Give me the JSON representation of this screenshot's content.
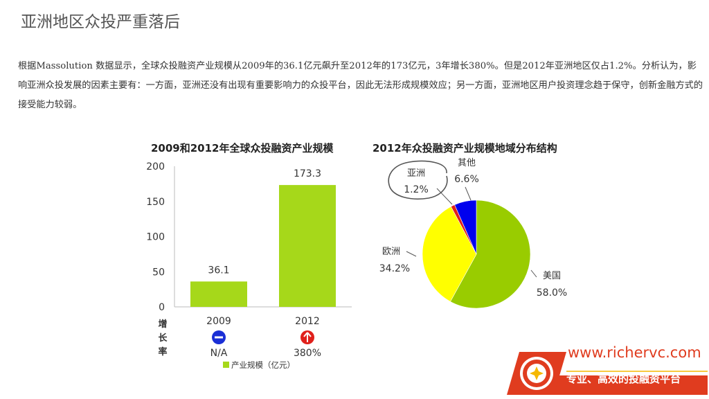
{
  "slide": {
    "title": "亚洲地区众投严重落后",
    "intro": "根据Massolution 数据显示，全球众投融资产业规模从2009年的36.1亿元飙升至2012年的173亿元，3年增长380%。但是2012年亚洲地区仅占1.2%。分析认为，影响亚洲众投发展的因素主要有：一方面，亚洲还没有出现有重要影响力的众投平台，因此无法形成规模效应；另一方面，亚洲地区用户投资理念趋于保守，创新金融方式的接受能力较弱。"
  },
  "chart_data": [
    {
      "type": "bar",
      "title": "2009和2012年全球众投融资产业规模",
      "categories": [
        "2009",
        "2012"
      ],
      "values": [
        36.1,
        173.3
      ],
      "data_labels": [
        "36.1",
        "173.3"
      ],
      "ylim": [
        0,
        200
      ],
      "yticks": [
        0,
        50,
        100,
        150,
        200
      ],
      "grid": false,
      "legend": "产业规模（亿元）",
      "legend_position": "bottom",
      "bar_color": "#a6d81a",
      "growth_row": {
        "label_chars": [
          "增",
          "长",
          "率"
        ],
        "values": [
          "N/A",
          "380%"
        ],
        "icons": [
          "minus-circle-icon",
          "up-arrow-circle-icon"
        ],
        "icon_colors": [
          "#1a2fd6",
          "#e0201b"
        ]
      }
    },
    {
      "type": "pie",
      "title": "2012年众投融资产业规模地域分布结构",
      "labels": [
        "美国",
        "欧洲",
        "亚洲",
        "其他"
      ],
      "values": [
        58.0,
        34.2,
        1.2,
        6.6
      ],
      "value_labels": [
        "58.0%",
        "34.2%",
        "1.2%",
        "6.6%"
      ],
      "colors": [
        "#99cc00",
        "#ffff00",
        "#e0201b",
        "#0000ee"
      ],
      "highlight": "亚洲"
    }
  ],
  "brand": {
    "url": "www.richervc.com",
    "slogan": "专业、高效的投融资平台",
    "colors": {
      "red": "#e03c1f",
      "gold": "#f5b800"
    },
    "logo_icon": "richervc-logo-icon"
  }
}
